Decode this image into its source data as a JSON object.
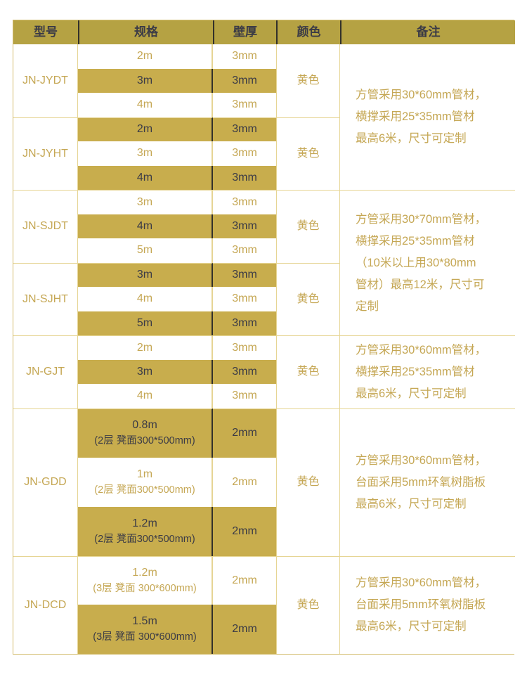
{
  "table": {
    "columns": [
      "型号",
      "规格",
      "壁厚",
      "颜色",
      "备注"
    ],
    "groups": [
      {
        "model": "JN-JYDT",
        "color_label": "黄色",
        "rows": [
          {
            "spec": "2m",
            "thickness": "3mm"
          },
          {
            "spec": "3m",
            "thickness": "3mm"
          },
          {
            "spec": "4m",
            "thickness": "3mm"
          }
        ]
      },
      {
        "model": "JN-JYHT",
        "color_label": "黄色",
        "rows": [
          {
            "spec": "2m",
            "thickness": "3mm"
          },
          {
            "spec": "3m",
            "thickness": "3mm"
          },
          {
            "spec": "4m",
            "thickness": "3mm"
          }
        ]
      },
      {
        "model": "JN-SJDT",
        "color_label": "黄色",
        "rows": [
          {
            "spec": "3m",
            "thickness": "3mm"
          },
          {
            "spec": "4m",
            "thickness": "3mm"
          },
          {
            "spec": "5m",
            "thickness": "3mm"
          }
        ]
      },
      {
        "model": "JN-SJHT",
        "color_label": "黄色",
        "rows": [
          {
            "spec": "3m",
            "thickness": "3mm"
          },
          {
            "spec": "4m",
            "thickness": "3mm"
          },
          {
            "spec": "5m",
            "thickness": "3mm"
          }
        ]
      },
      {
        "model": "JN-GJT",
        "color_label": "黄色",
        "rows": [
          {
            "spec": "2m",
            "thickness": "3mm"
          },
          {
            "spec": "3m",
            "thickness": "3mm"
          },
          {
            "spec": "4m",
            "thickness": "3mm"
          }
        ]
      },
      {
        "model": "JN-GDD",
        "color_label": "黄色",
        "rows": [
          {
            "spec": "0.8m",
            "spec_sub": "(2层  凳面300*500mm)",
            "thickness": "2mm"
          },
          {
            "spec": "1m",
            "spec_sub": "(2层  凳面300*500mm)",
            "thickness": "2mm"
          },
          {
            "spec": "1.2m",
            "spec_sub": "(2层  凳面300*500mm)",
            "thickness": "2mm"
          }
        ]
      },
      {
        "model": "JN-DCD",
        "color_label": "黄色",
        "rows": [
          {
            "spec": "1.2m",
            "spec_sub": "(3层 凳面 300*600mm)",
            "thickness": "2mm"
          },
          {
            "spec": "1.5m",
            "spec_sub": "(3层 凳面 300*600mm)",
            "thickness": "2mm"
          }
        ]
      }
    ],
    "remarks": [
      {
        "lines": [
          "方管采用30*60mm管材，",
          "横撑采用25*35mm管材",
          "最高6米，尺寸可定制"
        ]
      },
      {
        "lines": [
          "方管采用30*70mm管材，",
          "横撑采用25*35mm管材",
          "（10米以上用30*80mm",
          "管材）最高12米，尺寸可",
          "定制"
        ]
      },
      {
        "lines": [
          "方管采用30*60mm管材，",
          "横撑采用25*35mm管材",
          "最高6米，尺寸可定制"
        ]
      },
      {
        "lines": [
          "方管采用30*60mm管材，",
          "台面采用5mm环氧树脂板",
          "最高6米，尺寸可定制"
        ]
      },
      {
        "lines": [
          "方管采用30*60mm管材，",
          "台面采用5mm环氧树脂板",
          "最高6米，尺寸可定制"
        ]
      }
    ],
    "colors": {
      "header_bg": "#b5a243",
      "stripe_gold": "#c8ad4d",
      "text_dark": "#3b3b46",
      "text_gold": "#c5a754",
      "border_tan": "#e6d594",
      "border_outer": "#d2bb6a",
      "divider_dark": "#32302a"
    }
  }
}
